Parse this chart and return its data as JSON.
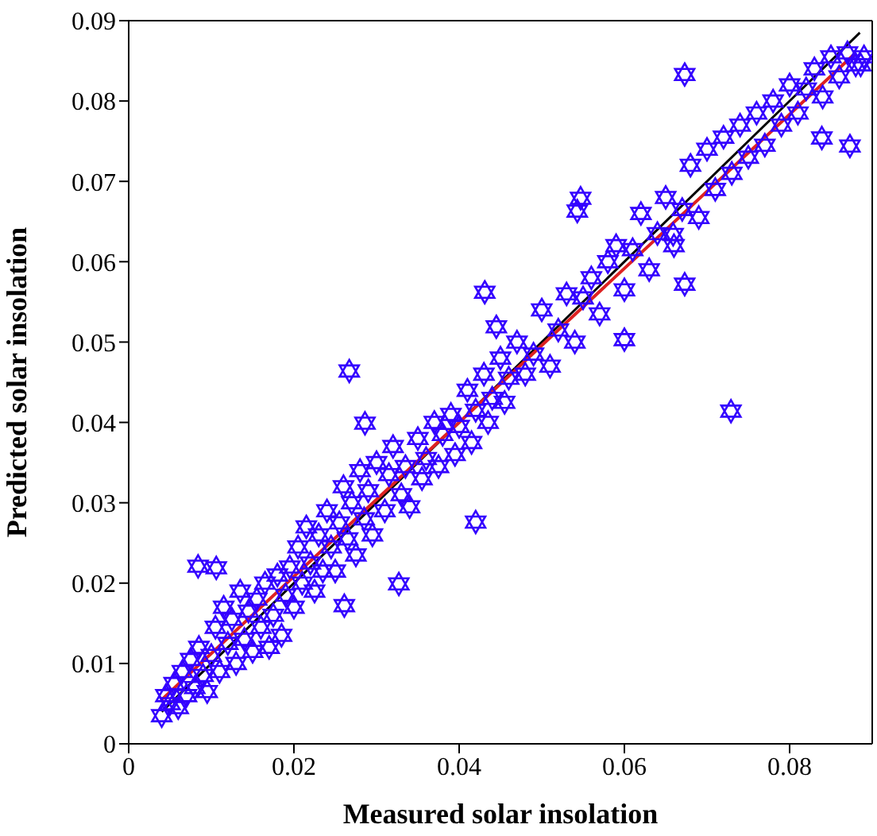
{
  "chart_data": {
    "type": "scatter",
    "xlabel": "Measured solar insolation",
    "ylabel": "Predicted solar insolation",
    "xlim": [
      0,
      0.09
    ],
    "xticks": [
      0,
      0.02,
      0.04,
      0.06,
      0.08
    ],
    "ylim": [
      0,
      0.09
    ],
    "yticks": [
      0,
      0.01,
      0.02,
      0.03,
      0.04,
      0.05,
      0.06,
      0.07,
      0.08,
      0.09
    ],
    "grid": false,
    "legend": false,
    "marker": "star",
    "series": [
      {
        "color": "#3300ff",
        "x": [
          0.004,
          0.0045,
          0.005,
          0.0055,
          0.006,
          0.0065,
          0.007,
          0.0075,
          0.008,
          0.0085,
          0.009,
          0.0095,
          0.01,
          0.0105,
          0.011,
          0.0115,
          0.012,
          0.0125,
          0.013,
          0.0135,
          0.014,
          0.0145,
          0.015,
          0.0155,
          0.016,
          0.0165,
          0.017,
          0.0175,
          0.018,
          0.0185,
          0.019,
          0.0195,
          0.02,
          0.0205,
          0.021,
          0.0215,
          0.022,
          0.0225,
          0.023,
          0.0235,
          0.024,
          0.0245,
          0.025,
          0.0255,
          0.026,
          0.0265,
          0.027,
          0.0275,
          0.028,
          0.0285,
          0.029,
          0.0295,
          0.03,
          0.031,
          0.0315,
          0.032,
          0.033,
          0.0335,
          0.034,
          0.035,
          0.0355,
          0.036,
          0.037,
          0.0375,
          0.038,
          0.039,
          0.0395,
          0.04,
          0.041,
          0.0415,
          0.042,
          0.043,
          0.0435,
          0.044,
          0.045,
          0.0455,
          0.046,
          0.047,
          0.048,
          0.049,
          0.05,
          0.051,
          0.052,
          0.053,
          0.054,
          0.055,
          0.056,
          0.057,
          0.058,
          0.059,
          0.06,
          0.061,
          0.062,
          0.063,
          0.064,
          0.065,
          0.066,
          0.067,
          0.068,
          0.069,
          0.07,
          0.071,
          0.072,
          0.073,
          0.074,
          0.075,
          0.076,
          0.077,
          0.078,
          0.079,
          0.08,
          0.081,
          0.082,
          0.083,
          0.084,
          0.085,
          0.086,
          0.087,
          0.088,
          0.089,
          0.0267,
          0.0286,
          0.042,
          0.0327,
          0.0729,
          0.0673,
          0.0673,
          0.06,
          0.0431,
          0.0445,
          0.0547,
          0.0543,
          0.0659,
          0.0084,
          0.0106,
          0.0261,
          0.0839,
          0.0873,
          0.0886
        ],
        "values": [
          0.0035,
          0.006,
          0.005,
          0.0075,
          0.0045,
          0.009,
          0.006,
          0.0105,
          0.007,
          0.012,
          0.0085,
          0.0065,
          0.011,
          0.0145,
          0.009,
          0.017,
          0.0125,
          0.0155,
          0.01,
          0.019,
          0.013,
          0.0165,
          0.0115,
          0.018,
          0.0145,
          0.02,
          0.012,
          0.016,
          0.021,
          0.0135,
          0.0185,
          0.022,
          0.017,
          0.0245,
          0.02,
          0.027,
          0.0225,
          0.019,
          0.026,
          0.0215,
          0.029,
          0.0245,
          0.0215,
          0.0275,
          0.032,
          0.0255,
          0.03,
          0.0235,
          0.034,
          0.028,
          0.0315,
          0.026,
          0.035,
          0.029,
          0.0335,
          0.037,
          0.031,
          0.0345,
          0.0295,
          0.038,
          0.033,
          0.0355,
          0.04,
          0.0345,
          0.0385,
          0.041,
          0.036,
          0.0395,
          0.044,
          0.0375,
          0.0415,
          0.046,
          0.04,
          0.043,
          0.048,
          0.0425,
          0.0455,
          0.05,
          0.046,
          0.0485,
          0.054,
          0.047,
          0.0515,
          0.056,
          0.05,
          0.0555,
          0.058,
          0.0535,
          0.06,
          0.062,
          0.0565,
          0.0615,
          0.066,
          0.059,
          0.0635,
          0.068,
          0.062,
          0.0665,
          0.072,
          0.0655,
          0.074,
          0.069,
          0.0755,
          0.071,
          0.077,
          0.073,
          0.0785,
          0.0745,
          0.08,
          0.077,
          0.082,
          0.0785,
          0.0815,
          0.084,
          0.0805,
          0.0855,
          0.083,
          0.086,
          0.0845,
          0.0855,
          0.0464,
          0.0399,
          0.0276,
          0.0199,
          0.0414,
          0.0572,
          0.0833,
          0.0503,
          0.0562,
          0.0519,
          0.0679,
          0.0663,
          0.0634,
          0.0221,
          0.0219,
          0.0172,
          0.0754,
          0.0744,
          0.0845
        ]
      },
      {
        "type": "line",
        "color": "#000000",
        "marker": "none",
        "x": [
          0.004,
          0.0885
        ],
        "values": [
          0.004,
          0.0885
        ]
      },
      {
        "type": "line",
        "color": "#dd2222",
        "marker": "none",
        "x": [
          0.004,
          0.088
        ],
        "values": [
          0.0055,
          0.086
        ]
      }
    ]
  }
}
